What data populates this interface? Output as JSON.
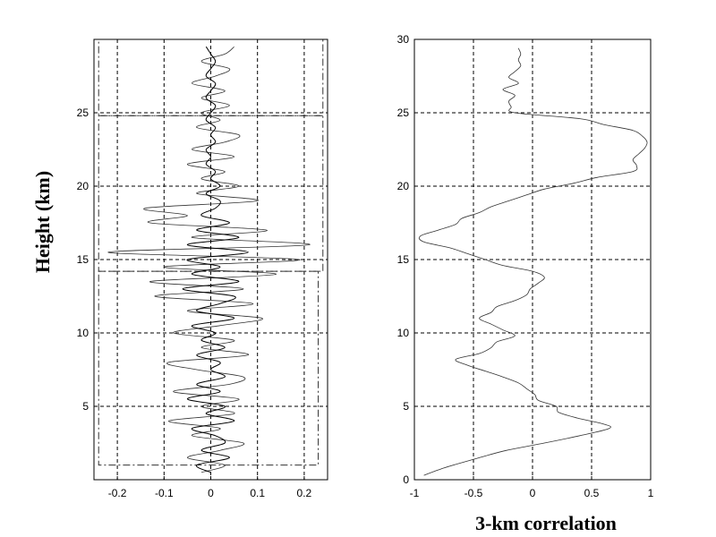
{
  "chart_data": [
    {
      "type": "line",
      "ylabel": "Height (km)",
      "xlabel": "",
      "xlim": [
        -0.25,
        0.25
      ],
      "ylim": [
        0,
        30
      ],
      "xticks": [
        "-0.2",
        "-0.1",
        "0",
        "0.1",
        "0.2"
      ],
      "yticks": [
        "5",
        "10",
        "15",
        "20",
        "25"
      ],
      "grid": true,
      "series": [
        {
          "y": [
            0.5,
            1.0,
            1.5,
            2.0,
            2.5,
            3.0,
            3.5,
            4.0,
            4.5,
            5.0,
            5.5,
            6.0,
            6.5,
            7.0,
            7.5,
            8.0,
            8.5,
            9.0,
            9.5,
            10.0,
            10.5,
            11.0,
            11.5,
            12.0,
            12.5,
            13.0,
            13.5,
            14.0,
            14.5,
            15.0,
            15.5,
            16.0,
            16.5,
            17.0,
            17.5,
            18.0,
            18.5,
            19.0,
            19.5,
            20.0,
            20.5,
            21.0,
            21.5,
            22.0,
            22.5,
            23.0,
            23.5,
            24.0,
            24.5,
            25.0,
            25.5,
            26.0,
            26.5,
            27.0,
            27.5,
            28.0,
            28.5,
            29.0,
            29.5
          ],
          "x": [
            -0.02,
            0.03,
            -0.05,
            0.02,
            0.07,
            -0.04,
            0.02,
            -0.09,
            0.05,
            -0.02,
            0.06,
            -0.08,
            0.04,
            0.07,
            -0.03,
            -0.09,
            0.08,
            -0.02,
            0.05,
            -0.08,
            0.02,
            0.11,
            -0.05,
            0.09,
            -0.12,
            0.07,
            -0.13,
            0.14,
            -0.1,
            0.19,
            -0.22,
            0.21,
            -0.04,
            0.12,
            -0.13,
            -0.05,
            -0.14,
            0.1,
            -0.03,
            0.06,
            -0.02,
            0.03,
            -0.05,
            0.05,
            -0.04,
            0.03,
            0.06,
            -0.03,
            0.02,
            -0.02,
            0.04,
            -0.02,
            0.03,
            -0.04,
            0.01,
            0.04,
            -0.02,
            0.03,
            0.05
          ]
        },
        {
          "y": [
            0.5,
            1.0,
            1.5,
            2.0,
            2.5,
            3.0,
            3.5,
            4.0,
            4.5,
            5.0,
            5.5,
            6.0,
            6.5,
            7.0,
            7.5,
            8.0,
            8.5,
            9.0,
            9.5,
            10.0,
            10.5,
            11.0,
            11.5,
            12.0,
            12.5,
            13.0,
            13.5,
            14.0,
            14.5,
            15.0,
            15.5,
            16.0,
            16.5,
            17.0,
            17.5,
            18.0,
            18.5,
            19.0,
            19.5,
            20.0,
            20.5,
            21.0,
            21.5,
            22.0,
            22.5,
            23.0,
            23.5,
            24.0,
            24.5,
            25.0,
            25.5,
            26.0,
            26.5,
            27.0,
            27.5,
            28.0,
            28.5,
            29.0,
            29.5
          ],
          "x": [
            0.0,
            -0.03,
            0.04,
            -0.02,
            0.03,
            0.01,
            -0.04,
            0.05,
            -0.01,
            0.03,
            -0.05,
            0.02,
            -0.03,
            0.03,
            0.0,
            0.02,
            -0.03,
            0.03,
            -0.02,
            0.01,
            -0.04,
            0.05,
            -0.03,
            0.02,
            0.05,
            -0.06,
            0.06,
            -0.04,
            0.02,
            -0.05,
            0.08,
            -0.05,
            0.06,
            -0.03,
            0.04,
            -0.02,
            0.01,
            0.02,
            -0.01,
            0.02,
            0.0,
            0.01,
            -0.01,
            0.0,
            -0.01,
            0.01,
            0.0,
            0.01,
            -0.01,
            0.0,
            0.01,
            -0.01,
            0.0,
            0.01,
            -0.01,
            0.0,
            0.01,
            0.0,
            -0.01
          ]
        }
      ],
      "rectangles": [
        {
          "x0": -0.24,
          "x1": 0.23,
          "y0": 1.0,
          "y1": 14.2
        },
        {
          "x0": -0.24,
          "x1": 0.24,
          "y0": 14.2,
          "y1": 24.8
        },
        {
          "x0": -0.24,
          "x1": 0.24,
          "y0": 24.8,
          "y1": 30.0
        }
      ]
    },
    {
      "type": "line",
      "ylabel": "",
      "xlabel": "3-km correlation",
      "xlim": [
        -1,
        1
      ],
      "ylim": [
        0,
        30
      ],
      "xticks": [
        "-1",
        "-0.5",
        "0",
        "0.5",
        "1"
      ],
      "yticks": [
        "0",
        "5",
        "10",
        "15",
        "20",
        "25",
        "30"
      ],
      "grid": true,
      "series": [
        {
          "y": [
            0.3,
            0.8,
            1.2,
            1.5,
            2.0,
            2.5,
            3.0,
            3.5,
            3.8,
            4.2,
            4.6,
            5.0,
            5.4,
            5.8,
            6.2,
            6.6,
            7.0,
            7.4,
            7.8,
            8.2,
            8.6,
            9.0,
            9.4,
            9.8,
            10.2,
            10.6,
            11.0,
            11.4,
            11.8,
            12.2,
            12.6,
            13.0,
            13.4,
            13.8,
            14.2,
            14.6,
            15.0,
            15.4,
            15.8,
            16.2,
            16.6,
            17.0,
            17.4,
            17.8,
            18.2,
            18.6,
            19.0,
            19.4,
            19.8,
            20.2,
            20.6,
            21.0,
            21.4,
            21.8,
            22.2,
            22.6,
            23.0,
            23.4,
            23.8,
            24.2,
            24.6,
            25.0,
            25.4,
            25.8,
            26.2,
            26.6,
            27.0,
            27.4,
            27.8,
            28.2,
            28.6,
            29.0,
            29.4
          ],
          "x": [
            -0.92,
            -0.75,
            -0.58,
            -0.45,
            -0.22,
            0.1,
            0.4,
            0.65,
            0.6,
            0.38,
            0.22,
            0.2,
            0.05,
            0.02,
            -0.05,
            -0.12,
            -0.25,
            -0.4,
            -0.55,
            -0.65,
            -0.45,
            -0.35,
            -0.3,
            -0.15,
            -0.25,
            -0.35,
            -0.45,
            -0.35,
            -0.3,
            -0.15,
            -0.05,
            -0.02,
            0.05,
            0.1,
            0.0,
            -0.25,
            -0.4,
            -0.55,
            -0.7,
            -0.92,
            -0.95,
            -0.8,
            -0.65,
            -0.6,
            -0.45,
            -0.35,
            -0.2,
            -0.05,
            0.1,
            0.35,
            0.55,
            0.85,
            0.88,
            0.85,
            0.9,
            0.95,
            0.97,
            0.93,
            0.85,
            0.6,
            0.4,
            -0.15,
            -0.18,
            -0.2,
            -0.15,
            -0.25,
            -0.12,
            -0.2,
            -0.15,
            -0.1,
            -0.12,
            -0.1,
            -0.12
          ]
        }
      ]
    }
  ]
}
